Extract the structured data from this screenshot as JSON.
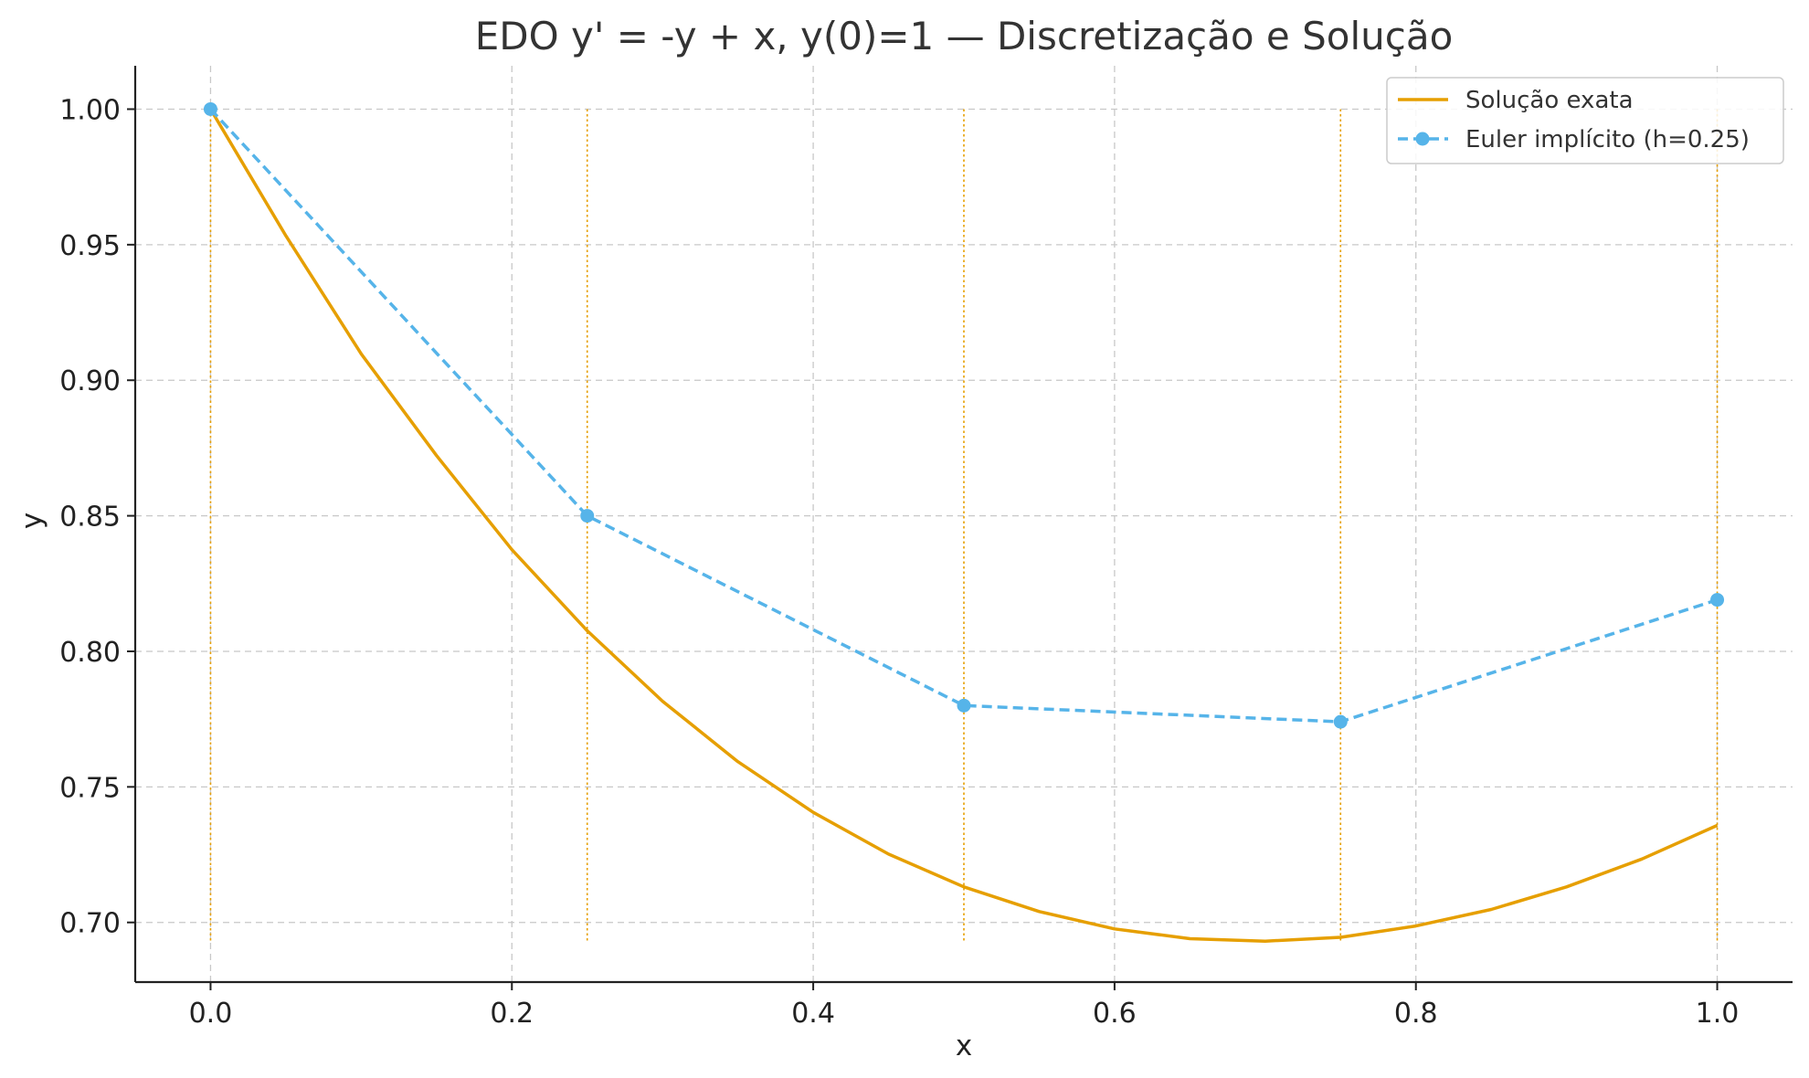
{
  "chart_data": {
    "type": "line",
    "title": "EDO y' = -y + x, y(0)=1 — Discretização e Solução",
    "xlabel": "x",
    "ylabel": "y",
    "xlim": [
      -0.05,
      1.05
    ],
    "ylim": [
      0.678,
      1.016
    ],
    "x_ticks": [
      "0.0",
      "0.2",
      "0.4",
      "0.6",
      "0.8",
      "1.0"
    ],
    "y_ticks": [
      "0.70",
      "0.75",
      "0.80",
      "0.85",
      "0.90",
      "0.95",
      "1.00"
    ],
    "grid": true,
    "legend_position": "upper-right",
    "step_markers": {
      "x": [
        0.0,
        0.25,
        0.5,
        0.75,
        1.0
      ],
      "y_range": [
        0.693,
        1.0
      ],
      "color": "#E69F00"
    },
    "series": [
      {
        "name": "Solução exata",
        "style": "solid",
        "color": "#E69F00",
        "x": [
          0.0,
          0.05,
          0.1,
          0.15,
          0.2,
          0.25,
          0.3,
          0.35,
          0.4,
          0.45,
          0.5,
          0.55,
          0.6,
          0.65,
          0.7,
          0.75,
          0.8,
          0.85,
          0.9,
          0.95,
          1.0
        ],
        "y": [
          1.0,
          0.9533,
          0.9097,
          0.8722,
          0.8375,
          0.8076,
          0.7816,
          0.7593,
          0.7406,
          0.7252,
          0.7131,
          0.704,
          0.6976,
          0.694,
          0.6931,
          0.6945,
          0.6987,
          0.7048,
          0.7131,
          0.7234,
          0.7358
        ]
      },
      {
        "name": "Euler implícito (h=0.25)",
        "style": "dashed",
        "marker": "circle",
        "color": "#56B4E9",
        "x": [
          0.0,
          0.25,
          0.5,
          0.75,
          1.0
        ],
        "y": [
          1.0,
          0.85,
          0.78,
          0.774,
          0.819
        ]
      }
    ]
  }
}
